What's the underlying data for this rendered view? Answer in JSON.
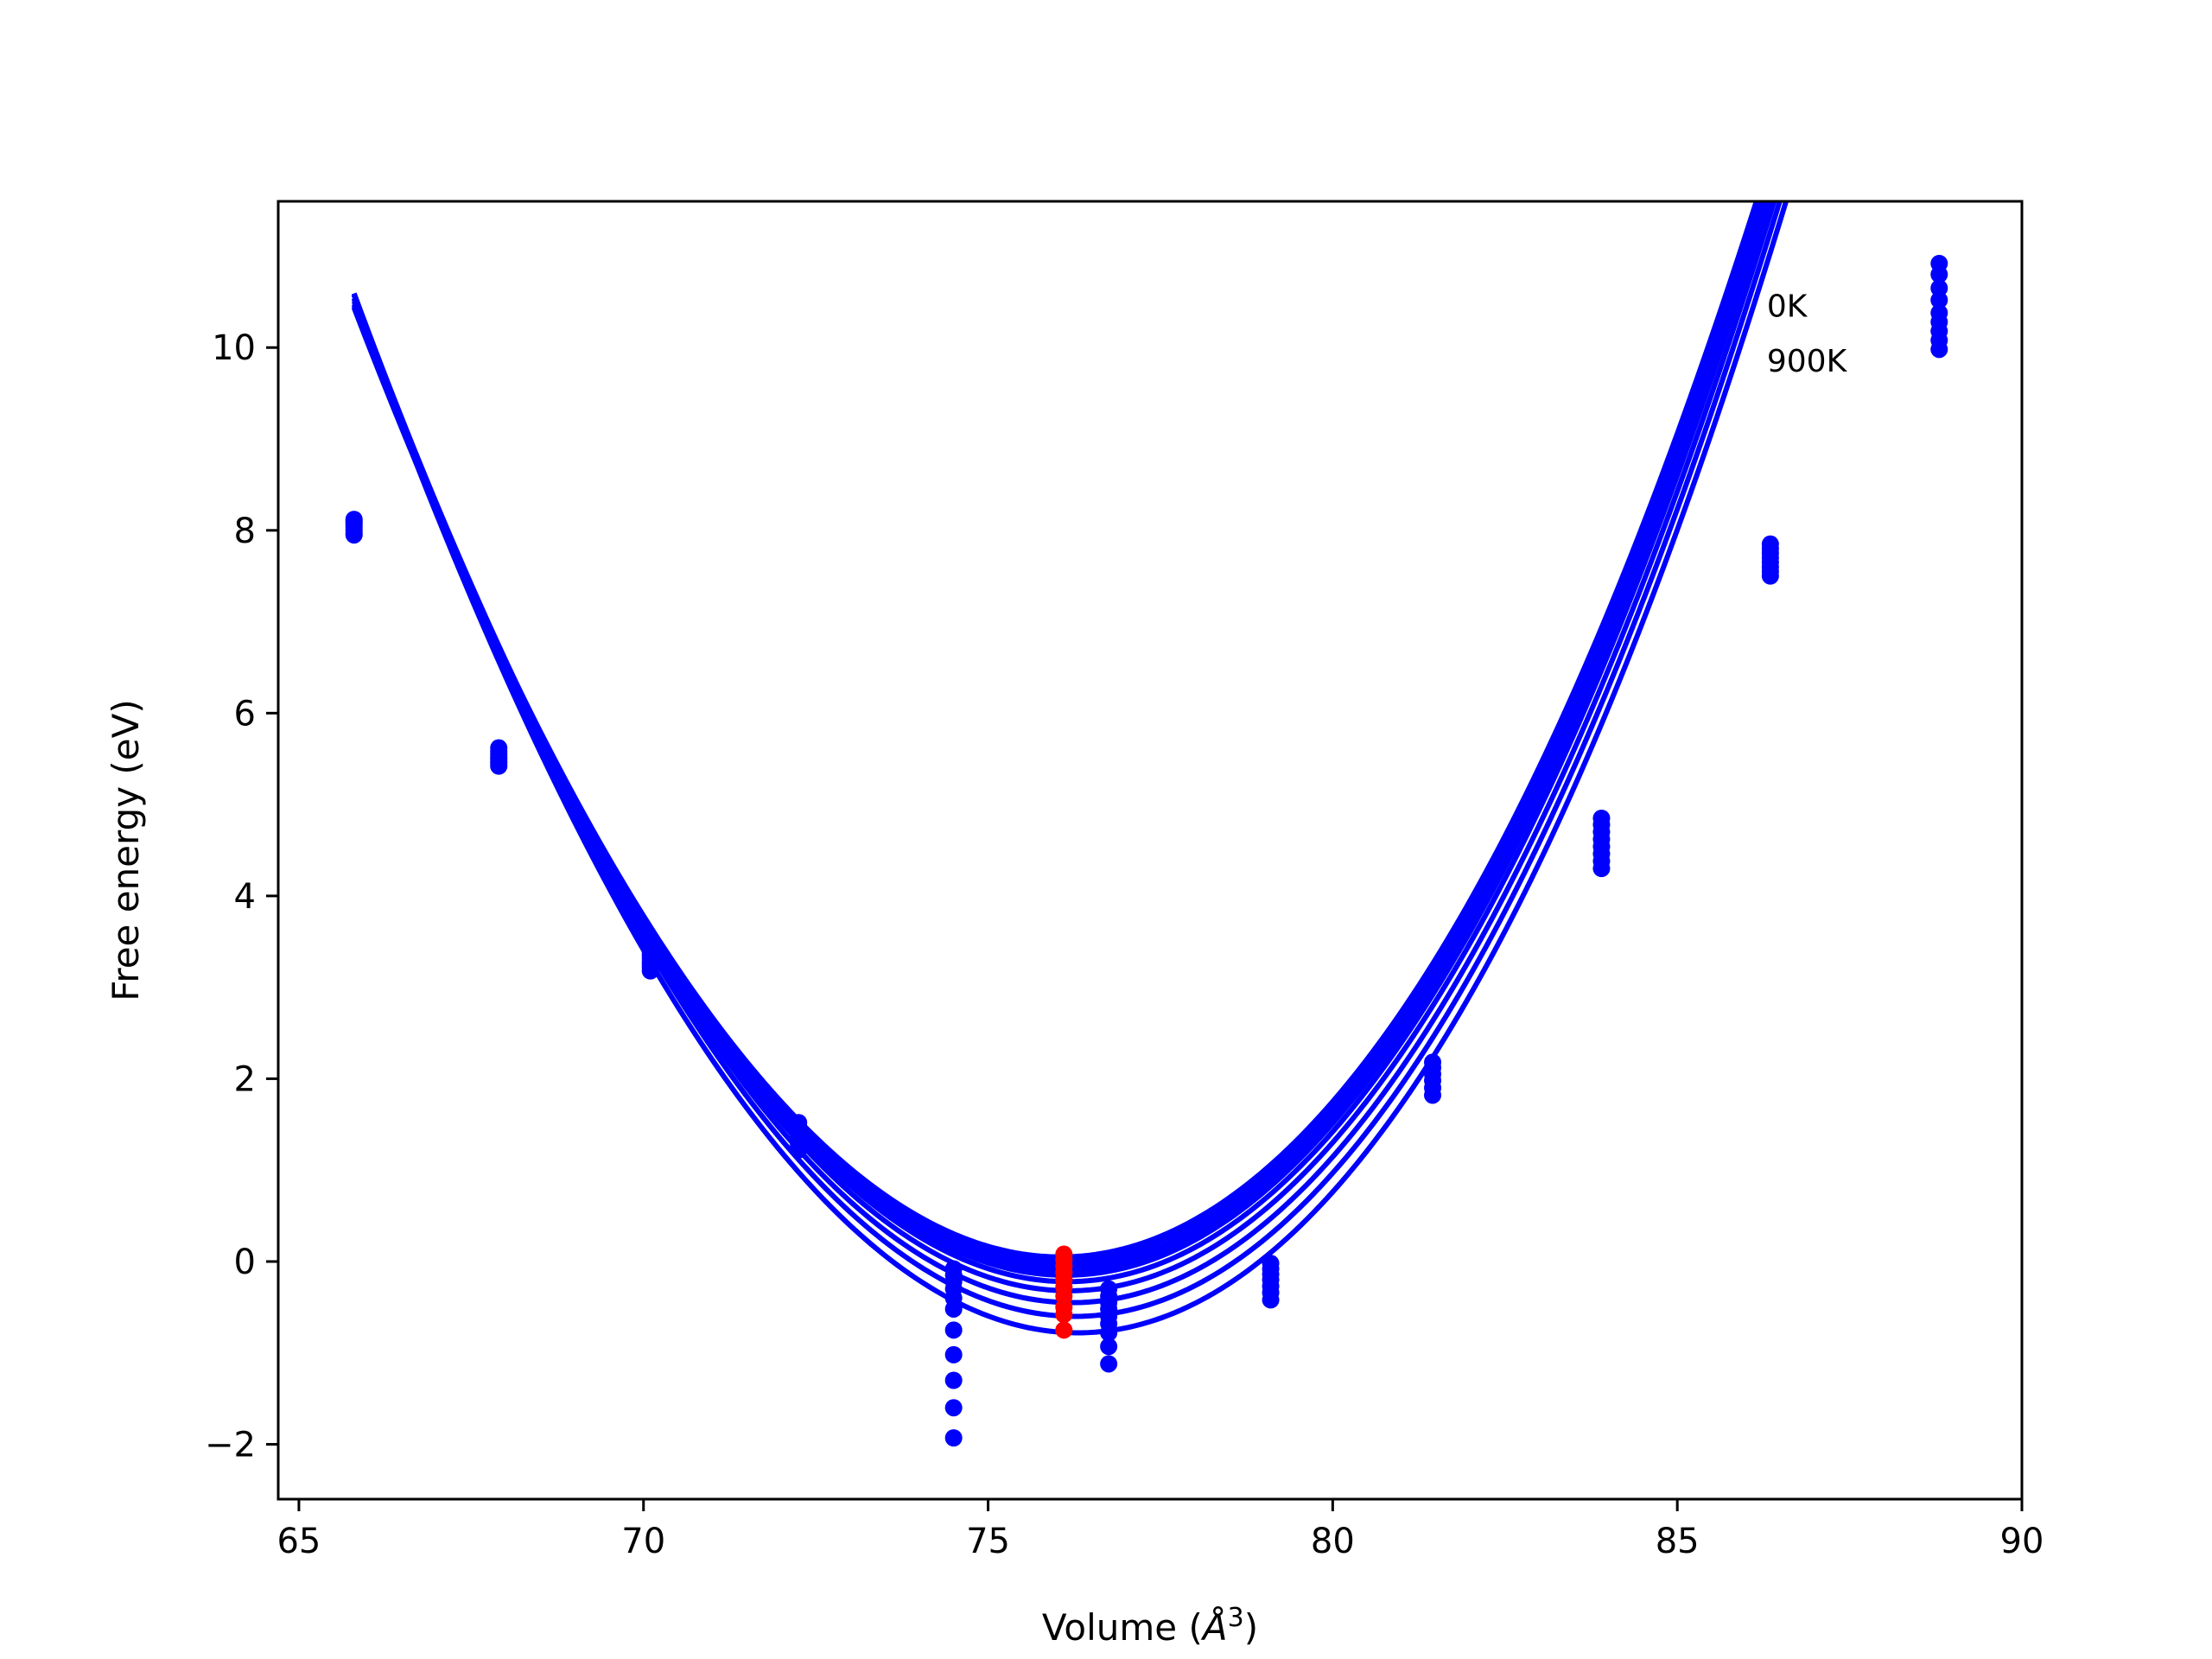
{
  "chart_data": {
    "type": "scatter",
    "title": "",
    "xlabel": "Volume (",
    "xlabel_symbol": "Å",
    "xlabel_sup": "3",
    "xlabel_close": ")",
    "ylabel": "Free energy (eV)",
    "xlim": [
      64.7,
      90.0
    ],
    "ylim": [
      -2.6,
      11.6
    ],
    "xticks": [
      65,
      70,
      75,
      80,
      85,
      90
    ],
    "xtick_labels": [
      "65",
      "70",
      "75",
      "80",
      "85",
      "90"
    ],
    "yticks": [
      -2,
      0,
      2,
      4,
      6,
      8,
      10
    ],
    "ytick_labels": [
      "−2",
      "0",
      "2",
      "4",
      "6",
      "8",
      "10"
    ],
    "grid": false,
    "annotations": [
      {
        "text": "0K",
        "x": 86.3,
        "y": 10.45
      },
      {
        "text": "900K",
        "x": 86.3,
        "y": 9.85
      }
    ],
    "curve_series": {
      "color": "#0000ff",
      "x_range": [
        65.8,
        88.85
      ],
      "curves": [
        {
          "v0": 76.05,
          "e0": 0.05,
          "a": 0.1062,
          "b": 0.0007
        },
        {
          "v0": 76.05,
          "e0": 0.0,
          "a": 0.1065,
          "b": 0.0007
        },
        {
          "v0": 76.08,
          "e0": -0.05,
          "a": 0.1068,
          "b": 0.0007
        },
        {
          "v0": 76.1,
          "e0": -0.1,
          "a": 0.1072,
          "b": 0.0007
        },
        {
          "v0": 76.12,
          "e0": -0.15,
          "a": 0.1076,
          "b": 0.0007
        },
        {
          "v0": 76.15,
          "e0": -0.22,
          "a": 0.108,
          "b": 0.0007
        },
        {
          "v0": 76.18,
          "e0": -0.32,
          "a": 0.1085,
          "b": 0.0007
        },
        {
          "v0": 76.22,
          "e0": -0.45,
          "a": 0.109,
          "b": 0.0007
        },
        {
          "v0": 76.26,
          "e0": -0.6,
          "a": 0.1095,
          "b": 0.0007
        },
        {
          "v0": 76.3,
          "e0": -0.78,
          "a": 0.11,
          "b": 0.0007
        }
      ]
    },
    "series": [
      {
        "color": "#0000ff",
        "x": 65.8,
        "y": [
          8.12,
          8.1,
          8.08,
          8.06,
          8.03,
          8.0,
          7.97,
          7.95
        ]
      },
      {
        "color": "#0000ff",
        "x": 67.9,
        "y": [
          5.62,
          5.58,
          5.55,
          5.52,
          5.5,
          5.47,
          5.45,
          5.42
        ]
      },
      {
        "color": "#0000ff",
        "x": 70.1,
        "y": [
          3.42,
          3.38,
          3.35,
          3.32,
          3.28,
          3.25,
          3.22,
          3.18
        ]
      },
      {
        "color": "#0000ff",
        "x": 72.25,
        "y": [
          1.52,
          1.48,
          1.44,
          1.4,
          1.36,
          1.32,
          1.28,
          1.22
        ]
      },
      {
        "color": "#0000ff",
        "x": 74.5,
        "y": [
          -0.08,
          -0.15,
          -0.22,
          -0.3,
          -0.4,
          -0.52,
          -0.75,
          -1.02,
          -1.3,
          -1.6,
          -1.93
        ]
      },
      {
        "color": "#ff0000",
        "x": 76.1,
        "y": [
          0.08,
          0.02,
          -0.05,
          -0.12,
          -0.2,
          -0.28,
          -0.38,
          -0.5,
          -0.58,
          -0.75
        ]
      },
      {
        "color": "#0000ff",
        "x": 76.75,
        "y": [
          -0.3,
          -0.38,
          -0.45,
          -0.52,
          -0.6,
          -0.68,
          -0.78,
          -0.93,
          -1.12
        ]
      },
      {
        "color": "#0000ff",
        "x": 79.1,
        "y": [
          -0.02,
          -0.08,
          -0.14,
          -0.2,
          -0.27,
          -0.34,
          -0.42
        ]
      },
      {
        "color": "#0000ff",
        "x": 81.45,
        "y": [
          2.18,
          2.12,
          2.05,
          1.98,
          1.9,
          1.82
        ]
      },
      {
        "color": "#0000ff",
        "x": 83.9,
        "y": [
          4.85,
          4.78,
          4.7,
          4.62,
          4.54,
          4.46,
          4.38,
          4.3
        ]
      },
      {
        "color": "#0000ff",
        "x": 86.35,
        "y": [
          7.85,
          7.8,
          7.75,
          7.7,
          7.65,
          7.6,
          7.55,
          7.5
        ]
      },
      {
        "color": "#0000ff",
        "x": 88.8,
        "y": [
          10.92,
          10.8,
          10.65,
          10.52,
          10.38,
          10.28,
          10.18,
          10.08,
          9.98
        ]
      }
    ]
  }
}
